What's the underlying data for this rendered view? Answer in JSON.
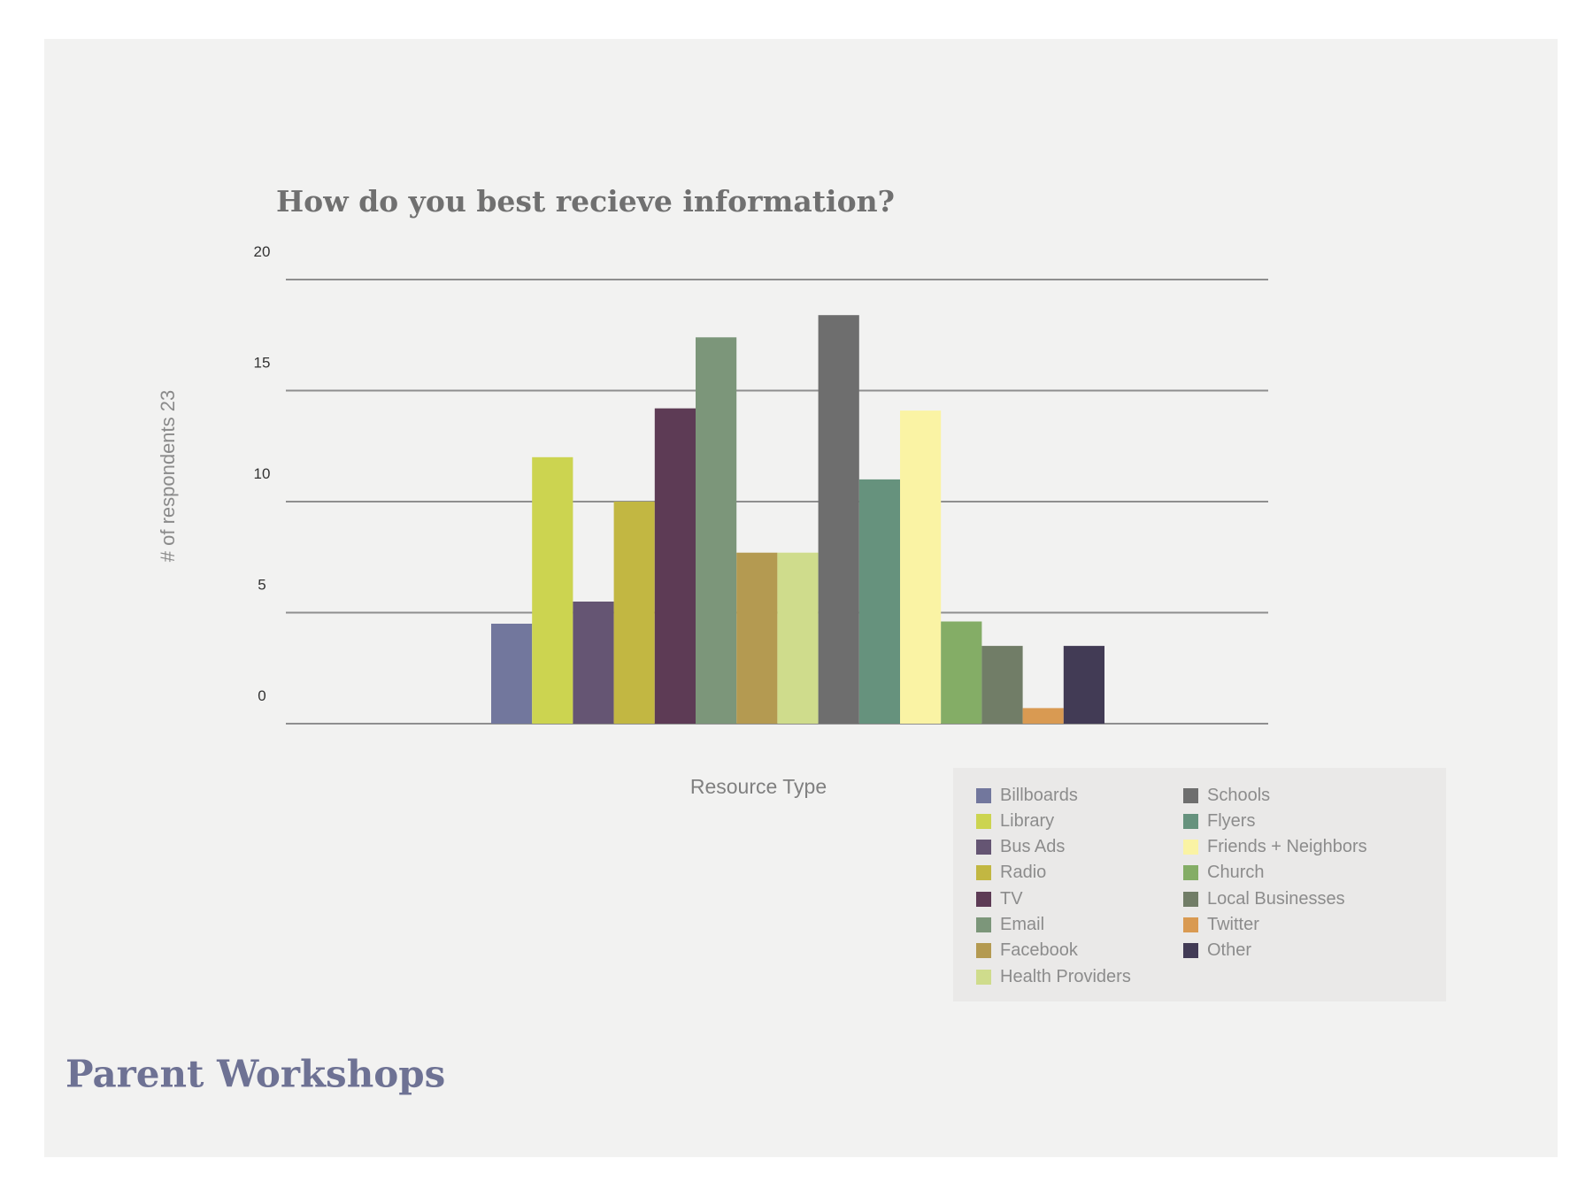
{
  "footer": {
    "title": "Parent Workshops"
  },
  "chart_data": {
    "type": "bar",
    "title": "How do you best recieve information?",
    "xlabel": "Resource Type",
    "ylabel": "# of respondents 23",
    "ylim": [
      0,
      20
    ],
    "yticks": [
      "0",
      "5",
      "10",
      "15",
      "20"
    ],
    "grid": true,
    "legend_position": "bottom-right",
    "categories": [
      "Billboards",
      "Library",
      "Bus Ads",
      "Radio",
      "TV",
      "Email",
      "Facebook",
      "Health Providers",
      "Schools",
      "Flyers",
      "Friends + Neighbors",
      "Church",
      "Local Businesses",
      "Twitter",
      "Other"
    ],
    "values": [
      4.5,
      12,
      5.5,
      10,
      14.2,
      17.4,
      7.7,
      7.7,
      18.4,
      11,
      14.1,
      4.6,
      3.5,
      0.7,
      3.5
    ],
    "colors": [
      "#72779d",
      "#ccd450",
      "#655573",
      "#c2b742",
      "#5d3b55",
      "#7c967a",
      "#b49a51",
      "#cfdc8c",
      "#6e6e6e",
      "#66927d",
      "#faf3a4",
      "#84ad66",
      "#717d67",
      "#d99a52",
      "#423b55"
    ]
  }
}
